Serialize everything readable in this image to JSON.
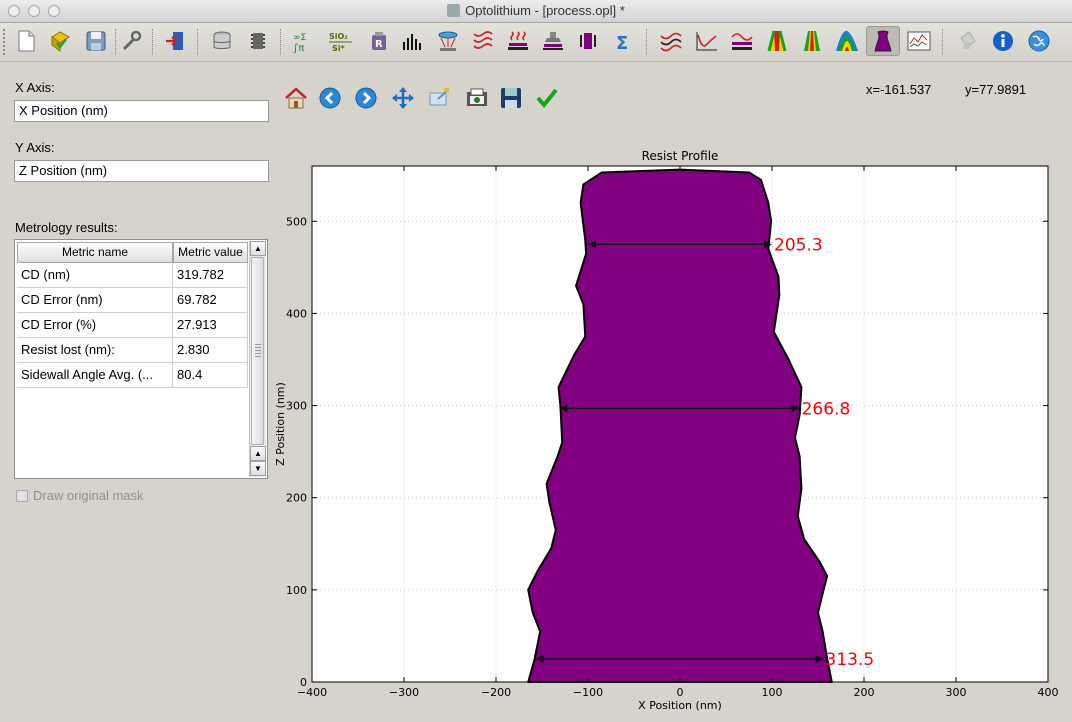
{
  "window": {
    "title": "Optolithium - [process.opl] *"
  },
  "toolbar_icons": [
    "new-file-icon",
    "open-file-icon",
    "save-file-icon",
    "settings-wrench-icon",
    "import-icon",
    "database-icon",
    "wafer-stack-icon",
    "math-formula-icon",
    "sio2-material-icon",
    "resist-r-icon",
    "spectrum-bars-icon",
    "illumination-icon",
    "wave-pattern-icon",
    "heater-icon",
    "exposure-icon",
    "mask-icon",
    "sum-icon",
    "aerial-wave-icon",
    "intensity-curve-icon",
    "image-in-resist-icon",
    "latent-image-icon",
    "pab-profile-icon",
    "peb-contour-icon",
    "resist-profile-icon",
    "metrology-chart-icon",
    "disabled-plugin-icon",
    "info-icon",
    "web-globe-icon"
  ],
  "left_panel": {
    "x_axis_label": "X Axis:",
    "x_axis_value": "X Position (nm)",
    "y_axis_label": "Y Axis:",
    "y_axis_value": "Z Position (nm)",
    "metrology_label": "Metrology results:",
    "table": {
      "headers": [
        "Metric name",
        "Metric value"
      ],
      "rows": [
        {
          "name": "CD (nm)",
          "value": "319.782"
        },
        {
          "name": "CD Error (nm)",
          "value": "69.782"
        },
        {
          "name": "CD Error (%)",
          "value": "27.913"
        },
        {
          "name": "Resist lost (nm):",
          "value": "2.830"
        },
        {
          "name": "Sidewall Angle Avg. (...",
          "value": "80.4"
        }
      ]
    },
    "draw_mask_label": "Draw original mask"
  },
  "plot_toolbar": {
    "icons": [
      "home-icon",
      "back-arrow-icon",
      "forward-arrow-icon",
      "pan-icon",
      "zoom-icon",
      "configure-subplots-icon",
      "save-figure-icon",
      "apply-check-icon"
    ],
    "cursor_x": "x=-161.537",
    "cursor_y": "y=77.9891"
  },
  "chart_data": {
    "type": "area",
    "title": "Resist Profile",
    "xlabel": "X Position (nm)",
    "ylabel": "Z Position (nm)",
    "xlim": [
      -400,
      400
    ],
    "ylim": [
      0,
      560
    ],
    "xticks": [
      -400,
      -300,
      -200,
      -100,
      0,
      100,
      200,
      300,
      400
    ],
    "yticks": [
      0,
      100,
      200,
      300,
      400,
      500
    ],
    "xtick_labels": [
      "−400",
      "−300",
      "−200",
      "−100",
      "0",
      "100",
      "200",
      "300",
      "400"
    ],
    "ytick_labels": [
      "0",
      "100",
      "200",
      "300",
      "400",
      "500"
    ],
    "grid": true,
    "fill_color": "#800080",
    "edge_color": "#000000",
    "annotation_color": "#ff0000",
    "profile_right_edge": [
      [
        165,
        0
      ],
      [
        160,
        25
      ],
      [
        155,
        55
      ],
      [
        150,
        75
      ],
      [
        156,
        100
      ],
      [
        160,
        115
      ],
      [
        152,
        130
      ],
      [
        135,
        155
      ],
      [
        128,
        180
      ],
      [
        132,
        210
      ],
      [
        130,
        245
      ],
      [
        125,
        265
      ],
      [
        130,
        290
      ],
      [
        132,
        320
      ],
      [
        118,
        350
      ],
      [
        102,
        380
      ],
      [
        108,
        420
      ],
      [
        107,
        440
      ],
      [
        96,
        470
      ],
      [
        99,
        500
      ],
      [
        96,
        520
      ],
      [
        88,
        545
      ],
      [
        75,
        553
      ],
      [
        0,
        556
      ]
    ],
    "profile_left_edge": [
      [
        -165,
        0
      ],
      [
        -158,
        25
      ],
      [
        -152,
        55
      ],
      [
        -160,
        75
      ],
      [
        -165,
        100
      ],
      [
        -155,
        120
      ],
      [
        -140,
        145
      ],
      [
        -135,
        165
      ],
      [
        -142,
        195
      ],
      [
        -145,
        215
      ],
      [
        -133,
        245
      ],
      [
        -128,
        260
      ],
      [
        -130,
        300
      ],
      [
        -132,
        320
      ],
      [
        -115,
        355
      ],
      [
        -103,
        375
      ],
      [
        -105,
        410
      ],
      [
        -113,
        430
      ],
      [
        -102,
        465
      ],
      [
        -103,
        480
      ],
      [
        -108,
        520
      ],
      [
        -105,
        540
      ],
      [
        -85,
        553
      ],
      [
        0,
        556
      ]
    ],
    "measurements": [
      {
        "label": "205.3",
        "z": 475,
        "x1": -100,
        "x2": 100
      },
      {
        "label": "266.8",
        "z": 297,
        "x1": -131,
        "x2": 130
      },
      {
        "label": "313.5",
        "z": 25,
        "x1": -157,
        "x2": 156
      }
    ]
  }
}
